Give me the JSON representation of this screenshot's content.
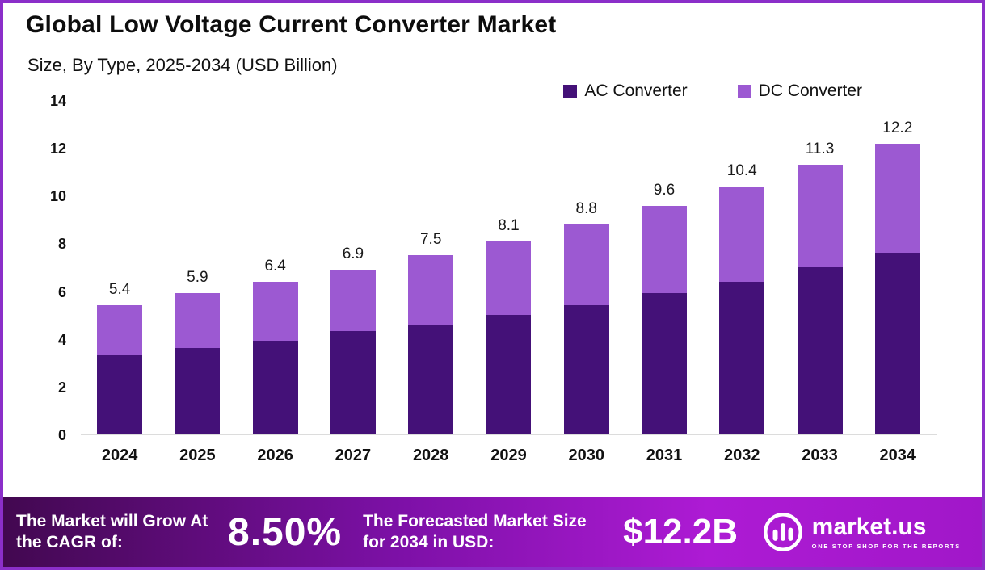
{
  "header": {
    "title": "Global Low Voltage Current Converter Market",
    "subtitle": "Size, By Type, 2025-2034 (USD Billion)"
  },
  "legend": [
    {
      "label": "AC Converter",
      "color": "#441178"
    },
    {
      "label": "DC Converter",
      "color": "#9c59d2"
    }
  ],
  "chart_data": {
    "type": "bar",
    "stacked": true,
    "title": "Global Low Voltage Current Converter Market",
    "subtitle": "Size, By Type, 2025-2034 (USD Billion)",
    "xlabel": "",
    "ylabel": "USD Billion",
    "ylim": [
      0,
      14
    ],
    "yticks": [
      0,
      2,
      4,
      6,
      8,
      10,
      12,
      14
    ],
    "grid": false,
    "legend_position": "top-right",
    "categories": [
      "2024",
      "2025",
      "2026",
      "2027",
      "2028",
      "2029",
      "2030",
      "2031",
      "2032",
      "2033",
      "2034"
    ],
    "series": [
      {
        "name": "AC Converter",
        "color": "#441178",
        "values": [
          3.3,
          3.6,
          3.9,
          4.3,
          4.6,
          5.0,
          5.4,
          5.9,
          6.4,
          7.0,
          7.6
        ]
      },
      {
        "name": "DC Converter",
        "color": "#9c59d2",
        "values": [
          2.1,
          2.3,
          2.5,
          2.6,
          2.9,
          3.1,
          3.4,
          3.7,
          4.0,
          4.3,
          4.6
        ]
      }
    ],
    "totals": [
      5.4,
      5.9,
      6.4,
      6.9,
      7.5,
      8.1,
      8.8,
      9.6,
      10.4,
      11.3,
      12.2
    ]
  },
  "footer": {
    "cagr_label": "The Market will Grow At the CAGR of:",
    "cagr_value": "8.50%",
    "forecast_label": "The Forecasted Market Size for 2034 in USD:",
    "forecast_value": "$12.2B",
    "brand": "market.us",
    "brand_tagline": "ONE STOP SHOP FOR THE REPORTS"
  }
}
